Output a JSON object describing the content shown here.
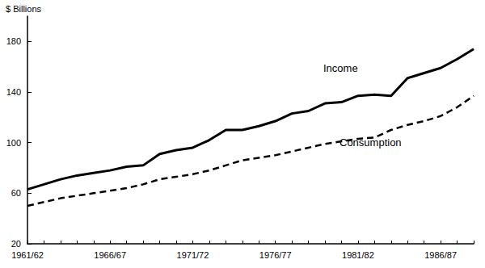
{
  "chart_data": {
    "type": "line",
    "y_label": "$ Billions",
    "categories": [
      "1961/62",
      null,
      null,
      null,
      null,
      "1966/67",
      null,
      null,
      null,
      null,
      "1971/72",
      null,
      null,
      null,
      null,
      "1976/77",
      null,
      null,
      null,
      null,
      "1981/82",
      null,
      null,
      null,
      null,
      "1986/87",
      null,
      null
    ],
    "series": [
      {
        "name": "Income",
        "color": "#000000",
        "line_style": "solid",
        "values": [
          63,
          67,
          71,
          74,
          76,
          78,
          81,
          82,
          91,
          94,
          96,
          102,
          110,
          110,
          113,
          117,
          123,
          125,
          131,
          132,
          137,
          138,
          137,
          151,
          155,
          159,
          166,
          174
        ]
      },
      {
        "name": "Consumption",
        "color": "#000000",
        "line_style": "dashed",
        "values": [
          50,
          53,
          56,
          58,
          60,
          62,
          64,
          67,
          71,
          73,
          75,
          78,
          82,
          86,
          88,
          90,
          93,
          96,
          99,
          101,
          103,
          104,
          110,
          114,
          117,
          121,
          128,
          137
        ]
      }
    ],
    "ylim": [
      20,
      200
    ],
    "yticks": [
      20,
      60,
      100,
      140,
      180
    ],
    "grid": false
  }
}
